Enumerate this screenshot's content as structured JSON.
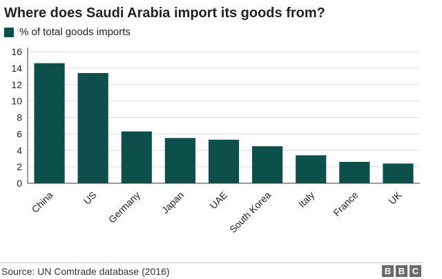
{
  "header": {
    "title": "Where does Saudi Arabia import its goods from?"
  },
  "footer": {
    "source": "Source: UN Comtrade database (2016)",
    "logo": [
      "B",
      "B",
      "C"
    ]
  },
  "colors": {
    "bar": "#0d4f4b",
    "grid": "#dddddd",
    "axis": "#333333"
  },
  "chart_data": {
    "type": "bar",
    "categories": [
      "China",
      "US",
      "Germany",
      "Japan",
      "UAE",
      "South Korea",
      "Italy",
      "France",
      "UK"
    ],
    "series": [
      {
        "name": "% of total goods imports",
        "values": [
          14.6,
          13.4,
          6.3,
          5.5,
          5.3,
          4.5,
          3.4,
          2.6,
          2.4
        ]
      }
    ],
    "yticks": [
      0,
      2,
      4,
      6,
      8,
      10,
      12,
      14,
      16
    ],
    "ylim": [
      0,
      16
    ],
    "grid": true,
    "legend": "top-left"
  }
}
